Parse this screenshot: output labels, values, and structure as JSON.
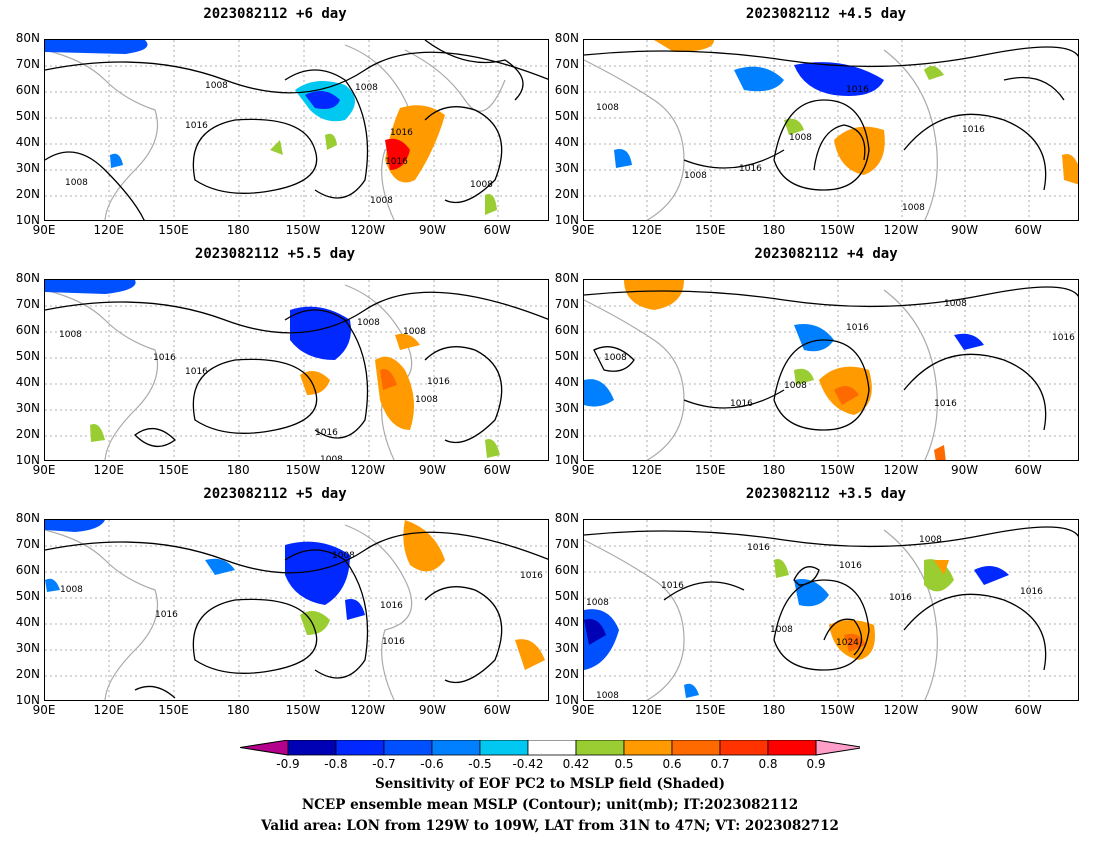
{
  "panels": [
    {
      "title": "2023082112 +6 day"
    },
    {
      "title": "2023082112 +4.5 day"
    },
    {
      "title": "2023082112 +5.5 day"
    },
    {
      "title": "2023082112 +4 day"
    },
    {
      "title": "2023082112 +5 day"
    },
    {
      "title": "2023082112 +3.5 day"
    }
  ],
  "axes": {
    "lat_labels": [
      "80N",
      "70N",
      "60N",
      "50N",
      "40N",
      "30N",
      "20N",
      "10N"
    ],
    "lon_labels": [
      "90E",
      "120E",
      "150E",
      "180",
      "150W",
      "120W",
      "90W",
      "60W"
    ]
  },
  "contour_labels": [
    [
      "1008",
      "1008",
      "1016",
      "1016",
      "1016",
      "1008",
      "1008",
      "1008"
    ],
    [
      "1008",
      "1016",
      "1008",
      "1008",
      "1016",
      "1016",
      "1008"
    ],
    [
      "1008",
      "1008",
      "1016",
      "1016",
      "1008",
      "1016",
      "1008",
      "1016",
      "1008"
    ],
    [
      "1008",
      "1016",
      "1008",
      "1016",
      "1016",
      "1008",
      "1016"
    ],
    [
      "1008",
      "1016",
      "1016",
      "1008",
      "1016",
      "1016"
    ],
    [
      "1016",
      "1008",
      "1016",
      "1016",
      "1016",
      "1008",
      "1024",
      "1016",
      "1008",
      "1008"
    ]
  ],
  "colorbar": {
    "labels": [
      "-0.9",
      "-0.8",
      "-0.7",
      "-0.6",
      "-0.5",
      "-0.42",
      "0.42",
      "0.5",
      "0.6",
      "0.7",
      "0.8",
      "0.9"
    ],
    "colors": [
      "#0000b4",
      "#0028ff",
      "#0050ff",
      "#0080ff",
      "#00c8f0",
      "#ffffff",
      "#9acd32",
      "#ff9b00",
      "#ff6a00",
      "#ff3300",
      "#ff0000"
    ],
    "under_color": "#b4008c",
    "over_color": "#ff9ec8"
  },
  "caption": {
    "line1": "Sensitivity of EOF PC2 to MSLP field (Shaded)",
    "line2": "NCEP ensemble mean MSLP (Contour); unit(mb); IT:2023082112",
    "line3": "Valid area: LON from 129W to 109W, LAT from 31N to 47N; VT: 2023082712"
  }
}
